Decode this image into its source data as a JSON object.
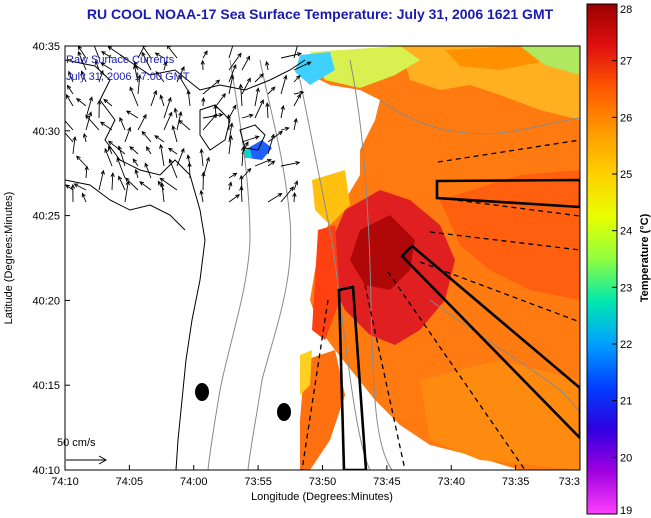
{
  "title": "RU COOL  NOAA-17  Sea Surface Temperature:  July 31, 2006 1621 GMT",
  "title_color": "#1a1ab0",
  "annotation_line1": "Raw Surface Currents",
  "annotation_line2": "July 31, 2006 17:00 GMT",
  "annotation_color": "#1a1ab0",
  "scale_label": "50 cm/s",
  "x_axis": {
    "label": "Longitude (Degrees:Minutes)",
    "ticks": [
      "74:10",
      "74:05",
      "74:00",
      "73:55",
      "73:50",
      "73:45",
      "73:40",
      "73:35",
      "73:3"
    ]
  },
  "y_axis": {
    "label": "Latitude (Degrees:Minutes)",
    "ticks": [
      "40:35",
      "40:30",
      "40:25",
      "40:20",
      "40:15",
      "40:10"
    ]
  },
  "colorbar": {
    "label": "Temperature (°C)",
    "ticks": [
      "28",
      "27",
      "26",
      "25",
      "24",
      "23",
      "22",
      "21",
      "20",
      "19"
    ],
    "colors": [
      "#9a0000",
      "#e01010",
      "#ff5a00",
      "#ff9a00",
      "#ffd000",
      "#e8ff00",
      "#90ff40",
      "#00e8b0",
      "#00a0ff",
      "#0040ff",
      "#3000e0",
      "#a000e0",
      "#ff40ff"
    ]
  }
}
